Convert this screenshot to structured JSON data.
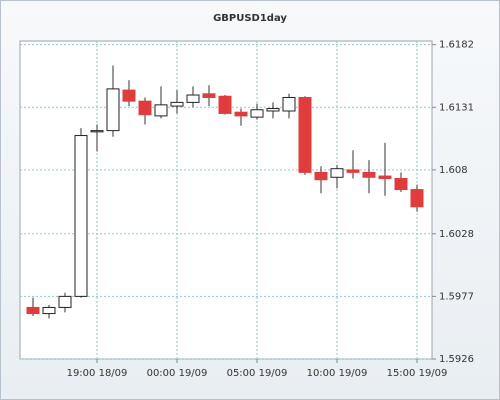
{
  "chart_data": {
    "type": "candlestick",
    "title": "GBPUSD1day",
    "categories": [
      null,
      null,
      null,
      null,
      "19:00 18/09",
      null,
      null,
      null,
      null,
      "00:00 19/09",
      null,
      null,
      null,
      null,
      "05:00 19/09",
      null,
      null,
      null,
      null,
      "10:00 19/09",
      null,
      null,
      null,
      null,
      "15:00 19/09"
    ],
    "open": [
      1.5968,
      1.5963,
      1.5968,
      1.5977,
      1.6111,
      1.6112,
      1.6145,
      1.6136,
      1.6124,
      1.6132,
      1.6135,
      1.6142,
      1.614,
      1.6127,
      1.6123,
      1.6128,
      1.6128,
      1.6139,
      1.6078,
      1.6074,
      1.608,
      1.6078,
      1.6075,
      1.6073,
      1.6064
    ],
    "high": [
      1.5976,
      1.597,
      1.598,
      1.6114,
      1.6117,
      1.6165,
      1.6153,
      1.6139,
      1.6148,
      1.6145,
      1.6148,
      1.6149,
      1.6141,
      1.613,
      1.6134,
      1.6135,
      1.6142,
      1.614,
      1.6083,
      1.6084,
      1.6096,
      1.6088,
      1.6102,
      1.6078,
      1.6068
    ],
    "low": [
      1.5961,
      1.5959,
      1.5964,
      1.5976,
      1.6095,
      1.6107,
      1.6132,
      1.6117,
      1.6122,
      1.6126,
      1.6131,
      1.6132,
      1.6125,
      1.6116,
      1.6121,
      1.6122,
      1.6122,
      1.6076,
      1.6061,
      1.6065,
      1.6073,
      1.6061,
      1.6059,
      1.6062,
      1.6046
    ],
    "close": [
      1.5963,
      1.5968,
      1.5977,
      1.6108,
      1.6112,
      1.6146,
      1.6136,
      1.6125,
      1.6133,
      1.6135,
      1.6141,
      1.6139,
      1.6126,
      1.6124,
      1.6129,
      1.613,
      1.6139,
      1.6078,
      1.6072,
      1.6081,
      1.6078,
      1.6074,
      1.6073,
      1.6064,
      1.605
    ],
    "up_color": "#ffffff",
    "down_color": "#e03c3c",
    "ylim": [
      1.5926,
      1.6185
    ],
    "yticks": [
      1.5926,
      1.5977,
      1.6028,
      1.608,
      1.6131,
      1.6182
    ],
    "grid": true
  }
}
